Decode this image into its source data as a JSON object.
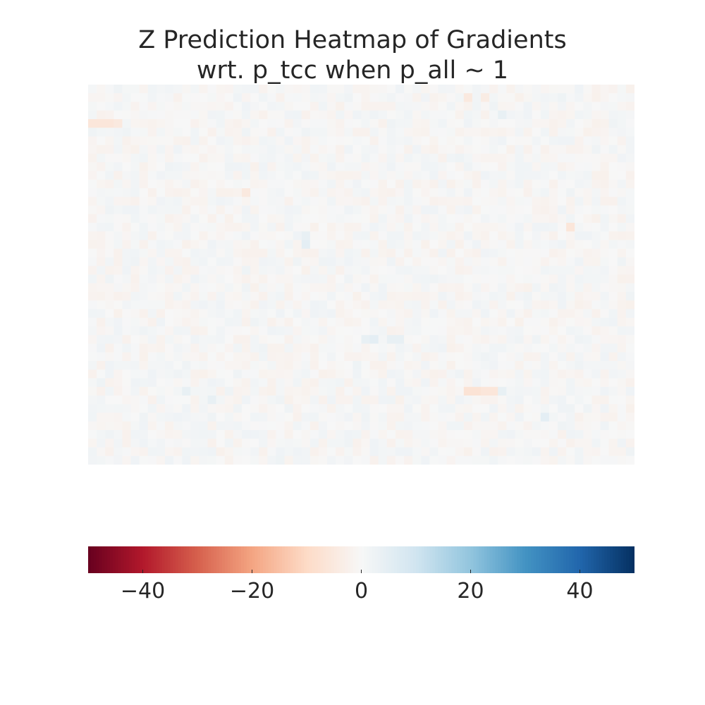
{
  "chart_data": {
    "type": "heatmap",
    "title": "Z Prediction Heatmap of Gradients\nwrt. p_tcc when p_all ~ 1",
    "title_lines": [
      "Z Prediction Heatmap of Gradients",
      "wrt. p_tcc when p_all ~ 1"
    ],
    "colormap": "RdBu",
    "vmin": -50,
    "vmax": 50,
    "rows": 44,
    "cols": 64,
    "axes_visible": false,
    "colorbar": {
      "orientation": "horizontal",
      "location": "bottom",
      "ticks": [
        -40,
        -20,
        0,
        20,
        40
      ],
      "tick_labels": [
        "−40",
        "−20",
        "0",
        "20",
        "40"
      ]
    },
    "value_range_observed": [
      -8,
      6
    ],
    "notable_cells": [
      {
        "row": 4,
        "col": 0,
        "value": -6
      },
      {
        "row": 4,
        "col": 1,
        "value": -6
      },
      {
        "row": 4,
        "col": 2,
        "value": -6
      },
      {
        "row": 4,
        "col": 3,
        "value": -5
      },
      {
        "row": 3,
        "col": 48,
        "value": 4
      },
      {
        "row": 1,
        "col": 44,
        "value": -5
      },
      {
        "row": 1,
        "col": 46,
        "value": -4
      },
      {
        "row": 17,
        "col": 25,
        "value": 4
      },
      {
        "row": 18,
        "col": 25,
        "value": 5
      },
      {
        "row": 29,
        "col": 33,
        "value": 5
      },
      {
        "row": 29,
        "col": 32,
        "value": 4
      },
      {
        "row": 29,
        "col": 35,
        "value": 4
      },
      {
        "row": 29,
        "col": 36,
        "value": 4
      },
      {
        "row": 35,
        "col": 44,
        "value": -7
      },
      {
        "row": 35,
        "col": 45,
        "value": -7
      },
      {
        "row": 35,
        "col": 46,
        "value": -6
      },
      {
        "row": 35,
        "col": 47,
        "value": -6
      },
      {
        "row": 35,
        "col": 48,
        "value": 4
      },
      {
        "row": 35,
        "col": 11,
        "value": 4
      },
      {
        "row": 36,
        "col": 14,
        "value": 4
      },
      {
        "row": 38,
        "col": 53,
        "value": 5
      },
      {
        "row": 3,
        "col": 48,
        "value": 4
      },
      {
        "row": 16,
        "col": 56,
        "value": -6
      },
      {
        "row": 12,
        "col": 18,
        "value": -5
      }
    ]
  }
}
